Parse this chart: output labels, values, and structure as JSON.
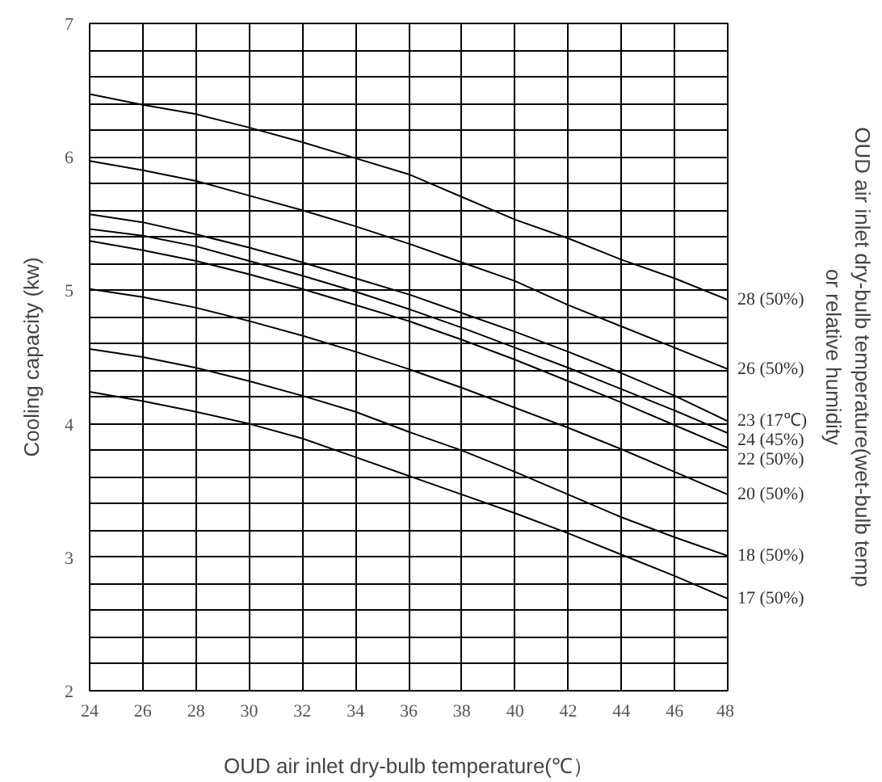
{
  "chart_data": {
    "type": "line",
    "xlabel": "OUD air inlet dry-bulb temperature(℃）",
    "ylabel": "Cooling capacity (kw)",
    "y2label": "OUD air inlet dry-bulb temperature(wet-bulb temp\nor relative humidity",
    "x": [
      24,
      26,
      28,
      30,
      32,
      34,
      36,
      38,
      40,
      42,
      44,
      46,
      48
    ],
    "xlim": [
      24,
      48
    ],
    "xticks": [
      24,
      26,
      28,
      30,
      32,
      34,
      36,
      38,
      40,
      42,
      44,
      46,
      48
    ],
    "ylim": [
      2,
      7
    ],
    "yticks": [
      2,
      {
        "value": 2.2,
        "label": null
      },
      {
        "value": 2.4,
        "label": null
      },
      {
        "value": 2.6,
        "label": null
      },
      {
        "value": 2.8,
        "label": null
      },
      3,
      {
        "value": 3.2,
        "label": null
      },
      {
        "value": 3.4,
        "label": null
      },
      {
        "value": 3.6,
        "label": null
      },
      {
        "value": 3.8,
        "label": null
      },
      4,
      {
        "value": 4.2,
        "label": null
      },
      {
        "value": 4.4,
        "label": null
      },
      {
        "value": 4.6,
        "label": null
      },
      {
        "value": 4.8,
        "label": null
      },
      5,
      {
        "value": 5.2,
        "label": null
      },
      {
        "value": 5.4,
        "label": null
      },
      {
        "value": 5.6,
        "label": null
      },
      {
        "value": 5.8,
        "label": null
      },
      6,
      {
        "value": 6.2,
        "label": null
      },
      {
        "value": 6.4,
        "label": null
      },
      {
        "value": 6.6,
        "label": null
      },
      {
        "value": 6.8,
        "label": null
      },
      7
    ],
    "grid": true,
    "marker": "none",
    "line_style": "solid",
    "series": [
      {
        "name": "28 (50%)",
        "color": "#000000",
        "values": [
          6.47,
          6.39,
          6.32,
          6.22,
          6.11,
          5.99,
          5.87,
          5.7,
          5.53,
          5.39,
          5.23,
          5.09,
          4.93
        ]
      },
      {
        "name": "26 (50%)",
        "color": "#000000",
        "values": [
          5.97,
          5.9,
          5.82,
          5.71,
          5.6,
          5.48,
          5.35,
          5.21,
          5.07,
          4.89,
          4.73,
          4.57,
          4.41
        ]
      },
      {
        "name": "23 (17℃)",
        "color": "#000000",
        "values": [
          5.57,
          5.51,
          5.42,
          5.32,
          5.21,
          5.09,
          4.97,
          4.83,
          4.69,
          4.54,
          4.38,
          4.21,
          4.02
        ]
      },
      {
        "name": "24 (45%)",
        "color": "#000000",
        "values": [
          5.46,
          5.41,
          5.33,
          5.22,
          5.11,
          4.99,
          4.86,
          4.72,
          4.57,
          4.42,
          4.26,
          4.1,
          3.93
        ]
      },
      {
        "name": "22 (50%)",
        "color": "#000000",
        "values": [
          5.37,
          5.3,
          5.22,
          5.12,
          5.01,
          4.89,
          4.77,
          4.63,
          4.48,
          4.32,
          4.16,
          3.99,
          3.82
        ]
      },
      {
        "name": "20 (50%)",
        "color": "#000000",
        "values": [
          5.01,
          4.95,
          4.87,
          4.77,
          4.66,
          4.54,
          4.41,
          4.27,
          4.12,
          3.97,
          3.81,
          3.64,
          3.47
        ]
      },
      {
        "name": "18 (50%)",
        "color": "#000000",
        "values": [
          4.56,
          4.5,
          4.42,
          4.32,
          4.21,
          4.09,
          3.94,
          3.8,
          3.64,
          3.47,
          3.3,
          3.15,
          3.01
        ]
      },
      {
        "name": "17 (50%)",
        "color": "#000000",
        "values": [
          4.24,
          4.17,
          4.09,
          4.0,
          3.89,
          3.75,
          3.61,
          3.47,
          3.33,
          3.18,
          3.02,
          2.86,
          2.69
        ]
      }
    ]
  }
}
